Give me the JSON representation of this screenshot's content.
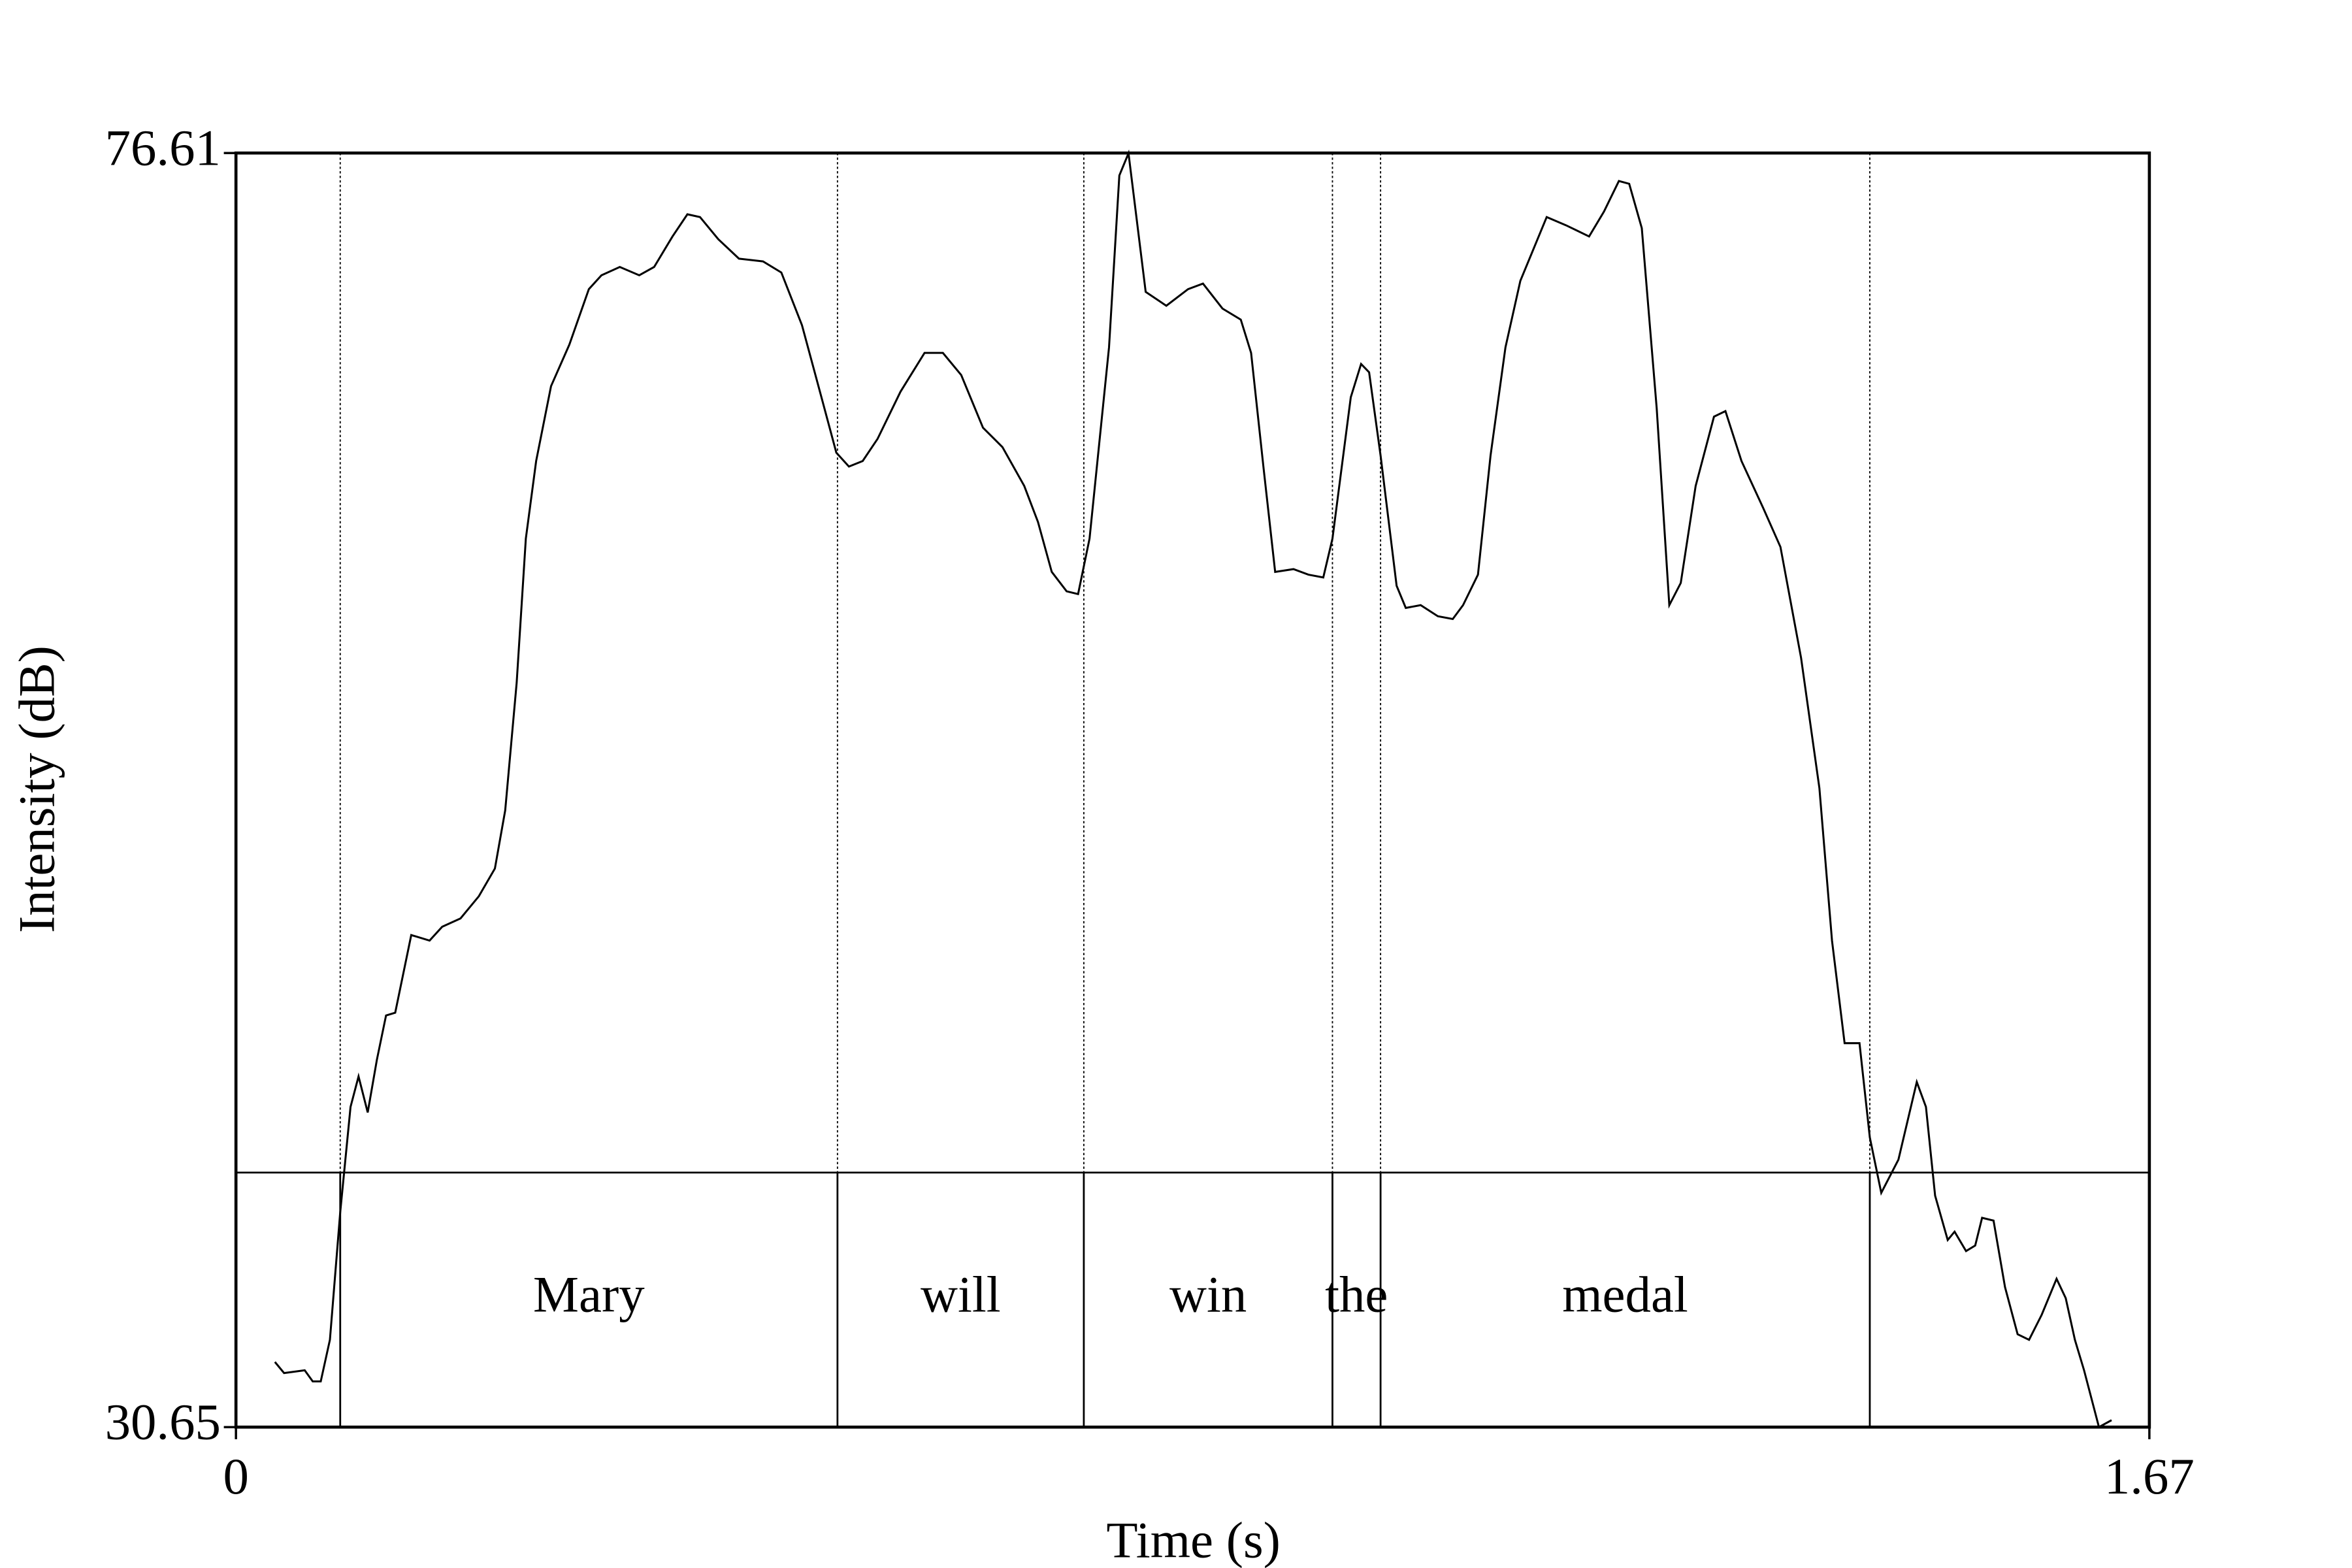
{
  "chart_data": {
    "type": "line",
    "xlabel": "Time (s)",
    "ylabel": "Intensity (dB)",
    "xlim": [
      0,
      1.67
    ],
    "xticks": [
      0,
      1.67
    ],
    "ylim": [
      30.65,
      76.61
    ],
    "yticks": [
      30.65,
      76.61
    ],
    "x": [
      0.034,
      0.042,
      0.06,
      0.067,
      0.074,
      0.082,
      0.091,
      0.1,
      0.107,
      0.115,
      0.123,
      0.131,
      0.139,
      0.153,
      0.169,
      0.18,
      0.196,
      0.212,
      0.226,
      0.235,
      0.245,
      0.253,
      0.262,
      0.275,
      0.291,
      0.308,
      0.319,
      0.335,
      0.352,
      0.365,
      0.381,
      0.394,
      0.405,
      0.421,
      0.439,
      0.46,
      0.476,
      0.494,
      0.511,
      0.524,
      0.535,
      0.547,
      0.56,
      0.58,
      0.601,
      0.617,
      0.633,
      0.652,
      0.669,
      0.688,
      0.7,
      0.712,
      0.725,
      0.735,
      0.745,
      0.762,
      0.771,
      0.779,
      0.794,
      0.812,
      0.831,
      0.844,
      0.861,
      0.877,
      0.886,
      0.897,
      0.907,
      0.923,
      0.936,
      0.949,
      0.957,
      0.973,
      0.982,
      0.989,
      0.999,
      1.013,
      1.021,
      1.034,
      1.049,
      1.062,
      1.071,
      1.084,
      1.095,
      1.108,
      1.121,
      1.144,
      1.161,
      1.181,
      1.194,
      1.207,
      1.216,
      1.227,
      1.24,
      1.251,
      1.261,
      1.274,
      1.29,
      1.3,
      1.314,
      1.333,
      1.348,
      1.366,
      1.382,
      1.393,
      1.404,
      1.417,
      1.426,
      1.436,
      1.451,
      1.467,
      1.475,
      1.483,
      1.494,
      1.5,
      1.51,
      1.518,
      1.524,
      1.534,
      1.544,
      1.555,
      1.565,
      1.576,
      1.589,
      1.597,
      1.605,
      1.613,
      1.626,
      1.637
    ],
    "series": [
      {
        "color": "#000000",
        "values": [
          33.0,
          32.6,
          32.7,
          32.3,
          32.3,
          33.8,
          38.4,
          42.2,
          43.3,
          42.0,
          43.9,
          45.5,
          45.6,
          48.4,
          48.2,
          48.7,
          49.0,
          49.8,
          50.8,
          52.9,
          57.5,
          62.7,
          65.5,
          68.2,
          69.7,
          71.7,
          72.2,
          72.5,
          72.2,
          72.5,
          73.6,
          74.4,
          74.3,
          73.5,
          72.8,
          72.7,
          72.3,
          70.4,
          67.8,
          65.8,
          65.3,
          65.5,
          66.3,
          68.0,
          69.4,
          69.4,
          68.6,
          66.7,
          66.0,
          64.6,
          63.3,
          61.5,
          60.8,
          60.7,
          62.7,
          69.6,
          75.8,
          76.6,
          71.6,
          71.1,
          71.7,
          71.9,
          71.0,
          70.6,
          69.4,
          65.2,
          61.5,
          61.6,
          61.4,
          61.3,
          62.7,
          67.8,
          69.0,
          68.7,
          65.7,
          61.0,
          60.2,
          60.3,
          59.9,
          59.8,
          60.3,
          61.4,
          65.7,
          69.6,
          72.0,
          74.3,
          74.0,
          73.6,
          74.5,
          75.6,
          75.5,
          73.9,
          67.4,
          60.3,
          61.1,
          64.6,
          67.1,
          67.3,
          65.5,
          63.8,
          62.4,
          58.4,
          53.7,
          48.2,
          44.5,
          44.5,
          41.1,
          39.1,
          40.3,
          43.1,
          42.2,
          39.0,
          37.4,
          37.7,
          37.0,
          37.2,
          38.2,
          38.1,
          35.7,
          34.0,
          33.8,
          34.7,
          36.0,
          35.3,
          33.8,
          32.7,
          30.65,
          30.9
        ]
      }
    ],
    "boundaries": [
      0.091,
      0.525,
      0.74,
      0.957,
      0.999,
      1.426
    ],
    "words": [
      "Mary",
      "will",
      "win",
      "the",
      "medal"
    ]
  }
}
